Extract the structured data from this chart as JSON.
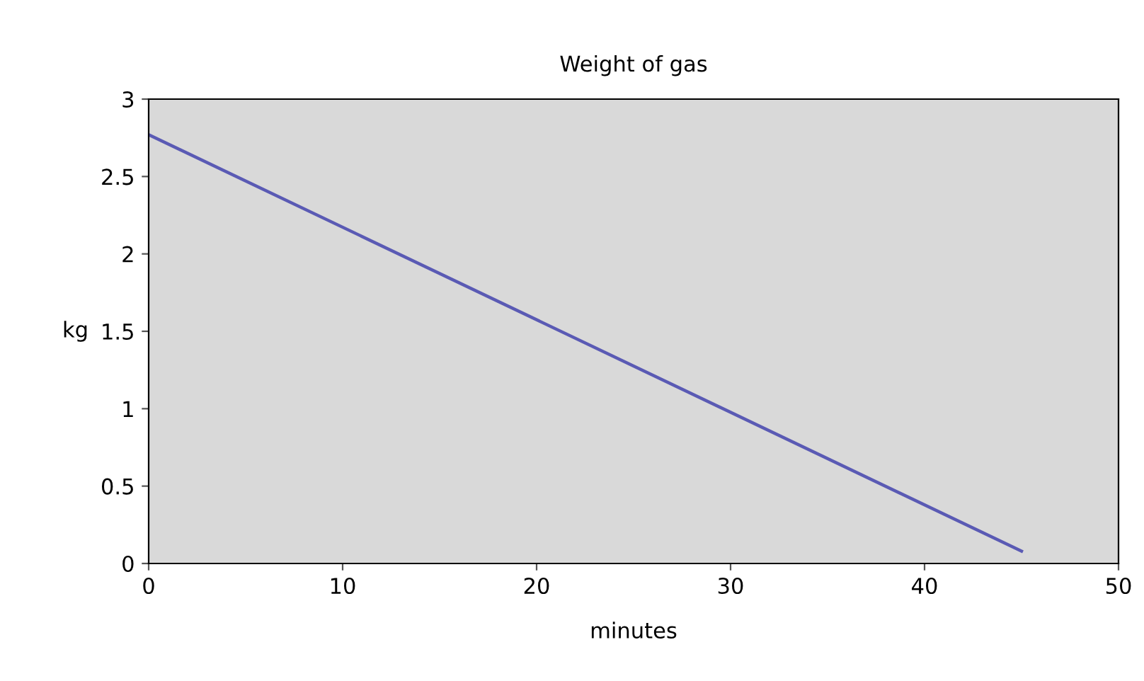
{
  "chart_data": {
    "type": "line",
    "title": "Weight of gas",
    "xlabel": "minutes",
    "ylabel": "kg",
    "x": [
      0,
      45
    ],
    "series": [
      {
        "color": "#5a5ab4",
        "values": [
          2.77,
          0.08
        ]
      }
    ],
    "xlim": [
      0,
      50
    ],
    "xticks": [
      0,
      10,
      20,
      30,
      40,
      50
    ],
    "ylim": [
      0,
      3
    ],
    "yticks": [
      0,
      0.5,
      1,
      1.5,
      2,
      2.5,
      3
    ],
    "grid": false,
    "legend": false,
    "marker": "none",
    "line_style": "solid"
  }
}
